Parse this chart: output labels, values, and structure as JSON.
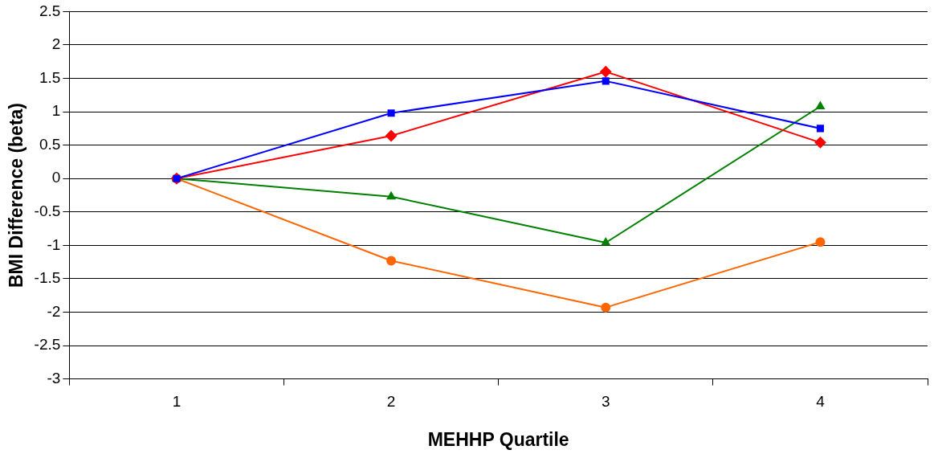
{
  "chart_data": {
    "type": "line",
    "xlabel": "MEHHP Quartile",
    "ylabel": "BMI Difference (beta)",
    "categories": [
      "1",
      "2",
      "3",
      "4"
    ],
    "series": [
      {
        "color": "#0000ff",
        "marker": "square",
        "values": [
          0,
          0.98,
          1.46,
          0.75
        ]
      },
      {
        "color": "#ff0000",
        "marker": "diamond",
        "values": [
          0,
          0.64,
          1.6,
          0.54
        ]
      },
      {
        "color": "#008000",
        "marker": "triangle",
        "values": [
          0,
          -0.27,
          -0.96,
          1.08
        ]
      },
      {
        "color": "#ff6600",
        "marker": "circle",
        "values": [
          0,
          -1.23,
          -1.93,
          -0.95
        ]
      }
    ],
    "ylim": [
      -3,
      2.5
    ],
    "yticks": [
      -3,
      -2.5,
      -2,
      -1.5,
      -1,
      -0.5,
      0,
      0.5,
      1,
      1.5,
      2,
      2.5
    ],
    "grid": "y",
    "legend": false,
    "line_style": "solid"
  }
}
